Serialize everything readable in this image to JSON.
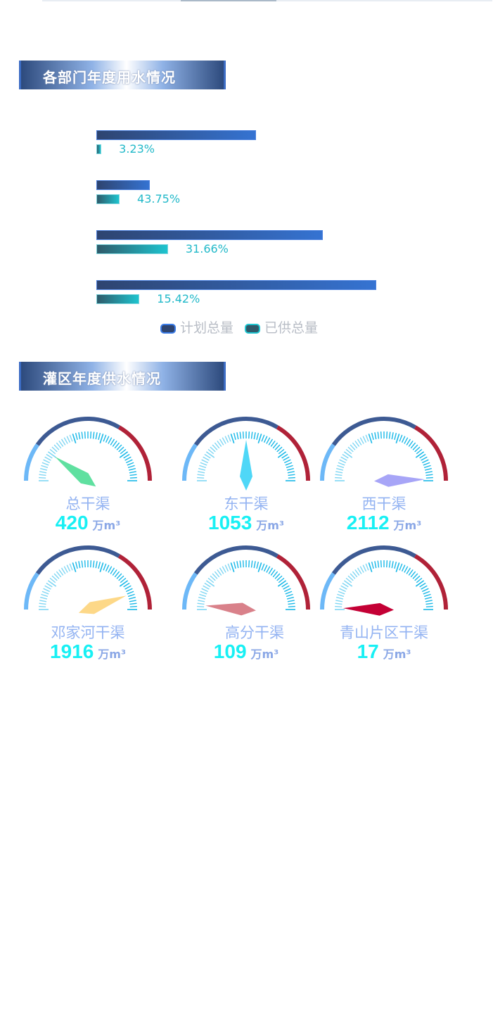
{
  "section1": {
    "title": "各部门年度用水情况"
  },
  "section2": {
    "title": "灌区年度供水情况"
  },
  "chart_data": [
    {
      "type": "bar",
      "orientation": "horizontal",
      "title": "",
      "series": [
        {
          "name": "计划总量",
          "values": [
            57,
            19,
            81,
            100
          ]
        },
        {
          "name": "已供总量",
          "values": [
            1.8,
            8.3,
            25.6,
            15.4
          ]
        }
      ],
      "data_labels": [
        "3.23%",
        "43.75%",
        "31.66%",
        "15.42%"
      ],
      "legend": "bottom",
      "colors": {
        "plan": "#3573d2",
        "supplied": "#1ec4cf"
      }
    },
    {
      "type": "gauge",
      "unit": "万m³",
      "zones": [
        {
          "color": "#6db8f7"
        },
        {
          "color": "#3d5a93"
        },
        {
          "color": "#b02238"
        }
      ],
      "gauges": [
        {
          "name": "总干渠",
          "value": "420",
          "pointer": 0.2,
          "pointer_color": "#5fe0a0"
        },
        {
          "name": "东干渠",
          "value": "1053",
          "pointer": 0.5,
          "pointer_color": "#4fd7f7"
        },
        {
          "name": "西干渠",
          "value": "2112",
          "pointer": 0.99,
          "pointer_color": "#a7a5f7"
        },
        {
          "name": "邓家河干渠",
          "value": "1916",
          "pointer": 0.89,
          "pointer_color": "#fdd888"
        },
        {
          "name": "高分干渠",
          "value": "109",
          "pointer": 0.03,
          "pointer_color": "#d9818a"
        },
        {
          "name": "青山片区干渠",
          "value": "17",
          "pointer": 0.01,
          "pointer_color": "#c40035"
        }
      ]
    }
  ]
}
